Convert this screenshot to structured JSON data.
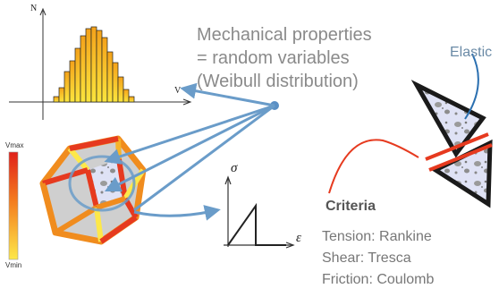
{
  "mechanical_text": [
    "Mechanical properties",
    "= random variables",
    "(Weibull distribution)"
  ],
  "elastic_label": "Elastic",
  "criteria": {
    "heading": "Criteria",
    "items": [
      "Tension: Rankine",
      "Shear: Tresca",
      "Friction: Coulomb"
    ]
  },
  "colorbar": {
    "max_label": "Vmax",
    "min_label": "Vmin"
  },
  "histogram": {
    "y_label": "N",
    "x_label": "V",
    "values": [
      3,
      8,
      17,
      23,
      30,
      37,
      41,
      42,
      40,
      36,
      28,
      22,
      14,
      7,
      3
    ]
  },
  "stress_strain": {
    "y_label": "σ",
    "x_label": "ε"
  },
  "colors": {
    "text_gray": "#8a8a8a",
    "arrow_blue": "#6a9cc9",
    "red": "#e63a1f",
    "orange": "#f08c1e",
    "yellow": "#fde84a",
    "hist_high": "#f4a21a",
    "hist_low": "#fbe53d"
  }
}
